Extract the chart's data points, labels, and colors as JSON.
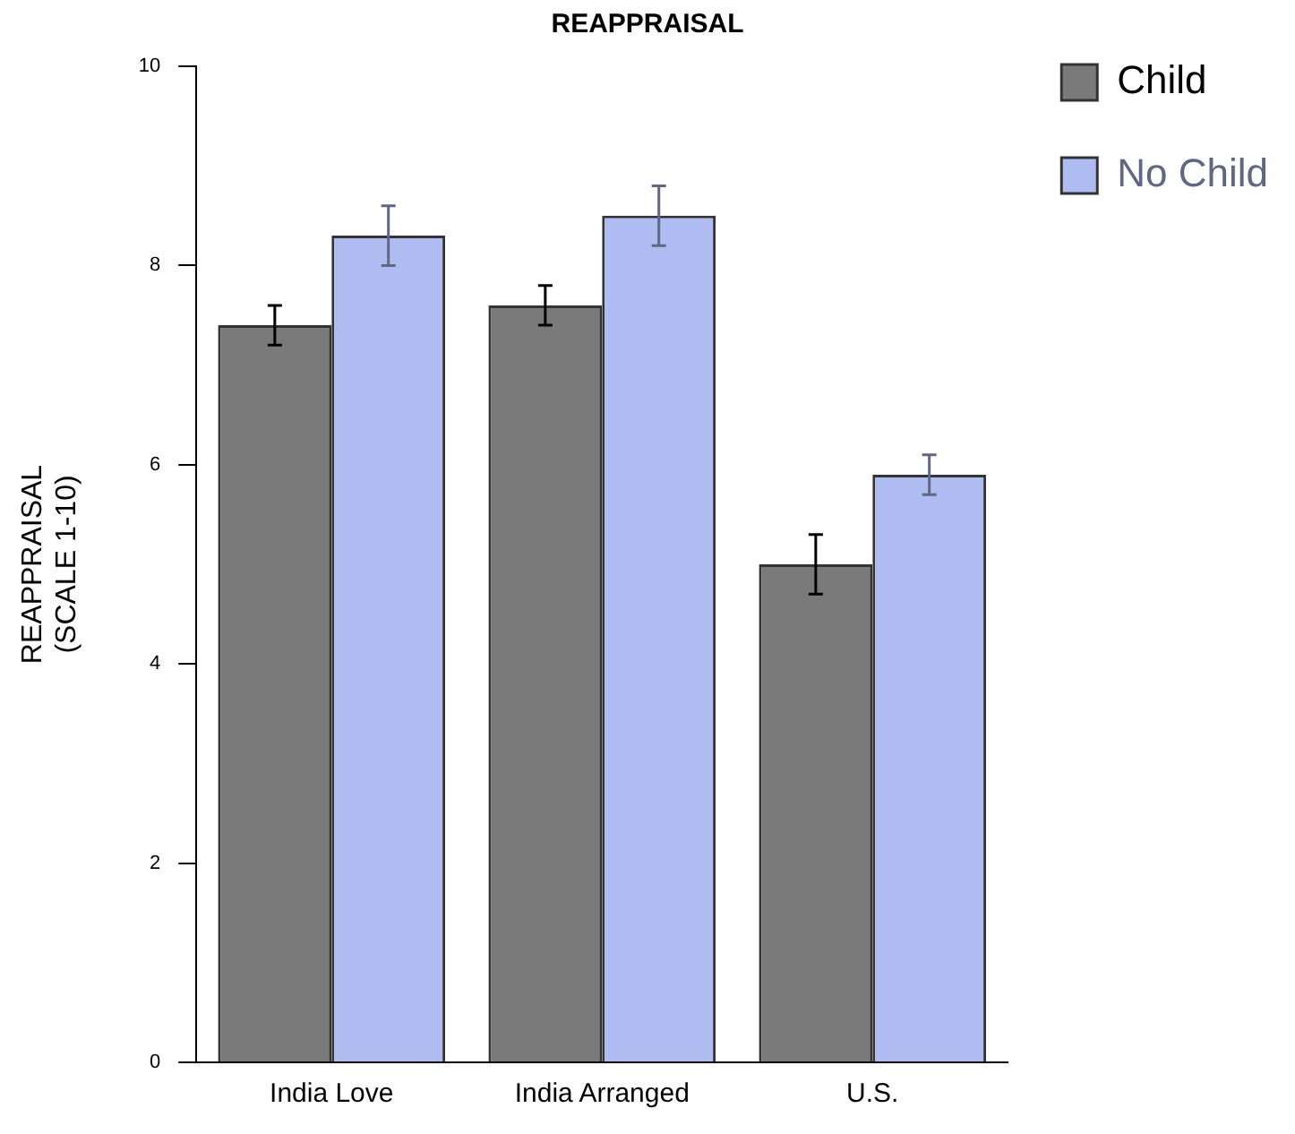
{
  "chart_data": {
    "type": "bar",
    "title": "REAPPRAISAL",
    "ylabel": "REAPPRAISAL\n(SCALE 1-10)",
    "categories": [
      "India Love",
      "India Arranged",
      "U.S."
    ],
    "series": [
      {
        "name": "Child",
        "color": "#7a7a7a",
        "values": [
          7.4,
          7.6,
          5.0
        ],
        "errors": [
          0.2,
          0.2,
          0.3
        ]
      },
      {
        "name": "No Child",
        "color": "#aebcf2",
        "values": [
          8.3,
          8.5,
          5.9
        ],
        "errors": [
          0.3,
          0.3,
          0.2
        ]
      }
    ],
    "ylim": [
      0,
      10
    ],
    "yticks": [
      0,
      2,
      4,
      6,
      8,
      10
    ],
    "grid": false,
    "legend": "top right"
  }
}
